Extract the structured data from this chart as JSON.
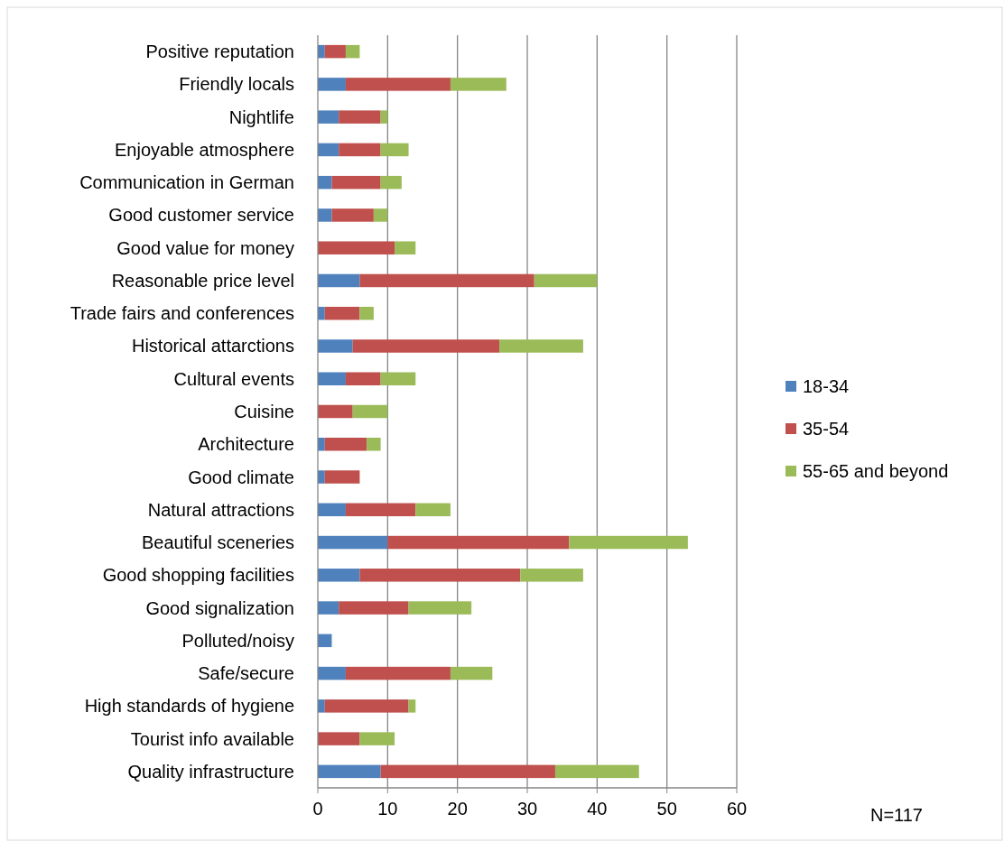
{
  "chart_data": {
    "type": "bar",
    "orientation": "horizontal",
    "stacked": true,
    "categories": [
      "Positive reputation",
      "Friendly locals",
      "Nightlife",
      "Enjoyable atmosphere",
      "Communication in German",
      "Good customer service",
      "Good value for money",
      "Reasonable price level",
      "Trade fairs and conferences",
      "Historical attarctions",
      "Cultural events",
      "Cuisine",
      "Architecture",
      "Good climate",
      "Natural attractions",
      "Beautiful sceneries",
      "Good shopping facilities",
      "Good signalization",
      "Polluted/noisy",
      "Safe/secure",
      "High standards of hygiene",
      "Tourist info available",
      "Quality infrastructure"
    ],
    "series": [
      {
        "name": "18-34",
        "color": "#4f81bd",
        "values": [
          1,
          4,
          3,
          3,
          2,
          2,
          0,
          6,
          1,
          5,
          4,
          0,
          1,
          1,
          4,
          10,
          6,
          3,
          2,
          4,
          1,
          0,
          9
        ]
      },
      {
        "name": "35-54",
        "color": "#c0504d",
        "values": [
          3,
          15,
          6,
          6,
          7,
          6,
          11,
          25,
          5,
          21,
          5,
          5,
          6,
          5,
          10,
          26,
          23,
          10,
          0,
          15,
          12,
          6,
          25
        ]
      },
      {
        "name": "55-65 and beyond",
        "color": "#9bbb59",
        "values": [
          2,
          8,
          1,
          4,
          3,
          2,
          3,
          9,
          2,
          12,
          5,
          5,
          2,
          0,
          5,
          17,
          9,
          9,
          0,
          6,
          1,
          5,
          12
        ]
      }
    ],
    "xlim": [
      0,
      60
    ],
    "xticks": [
      0,
      10,
      20,
      30,
      40,
      50,
      60
    ],
    "grid": "x",
    "legend": "right",
    "annotations": [
      "N=117"
    ]
  }
}
